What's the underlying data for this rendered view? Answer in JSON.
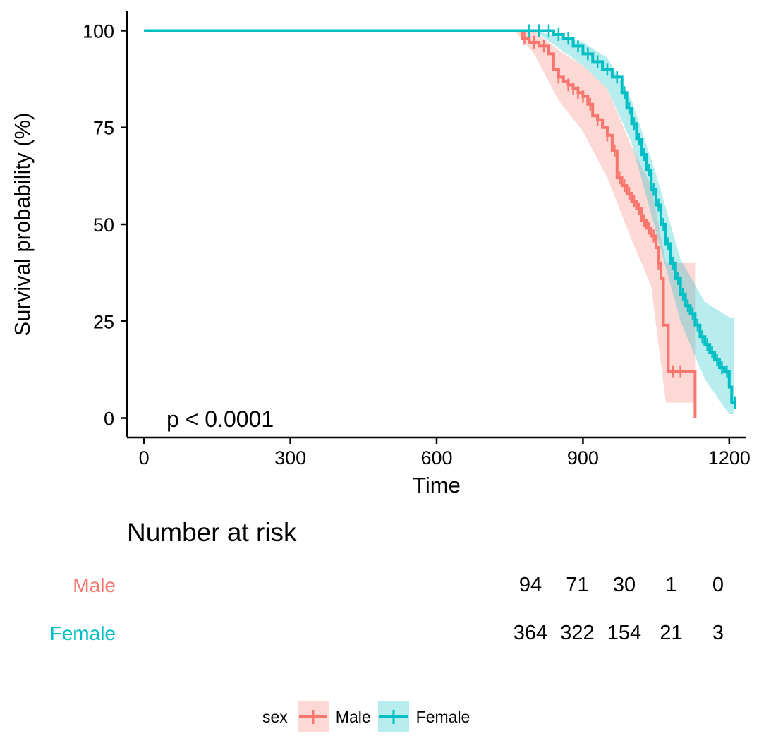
{
  "chart_data": {
    "type": "line",
    "subtype": "kaplan-meier",
    "title": "",
    "xlabel": "Time",
    "ylabel": "Survival probability (%)",
    "xlim": [
      -35,
      1235
    ],
    "ylim": [
      -5,
      105
    ],
    "xticks": [
      0,
      300,
      600,
      900,
      1200
    ],
    "yticks": [
      0,
      25,
      50,
      75,
      100
    ],
    "annotation": "p < 0.0001",
    "grid": false,
    "series": [
      {
        "name": "Male",
        "color": "#F8766D",
        "steps": [
          [
            0,
            100
          ],
          [
            760,
            100
          ],
          [
            775,
            98
          ],
          [
            790,
            97
          ],
          [
            810,
            96
          ],
          [
            830,
            94
          ],
          [
            840,
            90
          ],
          [
            850,
            88
          ],
          [
            860,
            87
          ],
          [
            870,
            86
          ],
          [
            880,
            85
          ],
          [
            890,
            84
          ],
          [
            900,
            83
          ],
          [
            910,
            81
          ],
          [
            920,
            78
          ],
          [
            930,
            77
          ],
          [
            940,
            75
          ],
          [
            950,
            73
          ],
          [
            960,
            69
          ],
          [
            970,
            62
          ],
          [
            980,
            60
          ],
          [
            990,
            58
          ],
          [
            1000,
            56
          ],
          [
            1010,
            54
          ],
          [
            1020,
            51
          ],
          [
            1030,
            49
          ],
          [
            1040,
            47
          ],
          [
            1050,
            44
          ],
          [
            1055,
            40
          ],
          [
            1060,
            36
          ],
          [
            1065,
            24
          ],
          [
            1075,
            12
          ],
          [
            1125,
            12
          ],
          [
            1130,
            0
          ]
        ],
        "ci_upper": [
          [
            760,
            100
          ],
          [
            800,
            100
          ],
          [
            850,
            95
          ],
          [
            900,
            91
          ],
          [
            950,
            85
          ],
          [
            1000,
            70
          ],
          [
            1040,
            60
          ],
          [
            1070,
            40
          ],
          [
            1090,
            40
          ],
          [
            1130,
            40
          ]
        ],
        "ci_lower": [
          [
            760,
            100
          ],
          [
            800,
            94
          ],
          [
            850,
            82
          ],
          [
            900,
            74
          ],
          [
            950,
            62
          ],
          [
            1000,
            46
          ],
          [
            1040,
            34
          ],
          [
            1060,
            14
          ],
          [
            1070,
            4
          ],
          [
            1130,
            4
          ]
        ],
        "censor_times": [
          780,
          800,
          820,
          850,
          870,
          880,
          890,
          900,
          915,
          930,
          950,
          965,
          975,
          985,
          995,
          1005,
          1015,
          1025,
          1035,
          1045,
          1055,
          1085,
          1100
        ]
      },
      {
        "name": "Female",
        "color": "#00BFC4",
        "steps": [
          [
            0,
            100
          ],
          [
            800,
            100
          ],
          [
            840,
            99
          ],
          [
            860,
            98
          ],
          [
            880,
            96
          ],
          [
            900,
            94
          ],
          [
            920,
            92
          ],
          [
            940,
            90
          ],
          [
            960,
            88
          ],
          [
            980,
            84
          ],
          [
            990,
            80
          ],
          [
            1000,
            76
          ],
          [
            1010,
            72
          ],
          [
            1020,
            68
          ],
          [
            1030,
            64
          ],
          [
            1040,
            59
          ],
          [
            1050,
            55
          ],
          [
            1060,
            50
          ],
          [
            1070,
            45
          ],
          [
            1080,
            40
          ],
          [
            1090,
            36
          ],
          [
            1100,
            32
          ],
          [
            1110,
            29
          ],
          [
            1120,
            27
          ],
          [
            1130,
            24
          ],
          [
            1140,
            21
          ],
          [
            1150,
            19
          ],
          [
            1160,
            17
          ],
          [
            1170,
            15
          ],
          [
            1180,
            13
          ],
          [
            1190,
            12
          ],
          [
            1200,
            8
          ],
          [
            1205,
            4
          ],
          [
            1210,
            4
          ]
        ],
        "ci_upper": [
          [
            800,
            100
          ],
          [
            900,
            97
          ],
          [
            950,
            93
          ],
          [
            1000,
            82
          ],
          [
            1050,
            63
          ],
          [
            1100,
            41
          ],
          [
            1150,
            30
          ],
          [
            1200,
            26
          ],
          [
            1210,
            26
          ]
        ],
        "ci_lower": [
          [
            800,
            100
          ],
          [
            900,
            91
          ],
          [
            950,
            85
          ],
          [
            1000,
            71
          ],
          [
            1050,
            48
          ],
          [
            1100,
            25
          ],
          [
            1150,
            10
          ],
          [
            1200,
            1
          ],
          [
            1210,
            1
          ]
        ],
        "censor_times": [
          790,
          810,
          830,
          850,
          870,
          890,
          910,
          930,
          950,
          970,
          985,
          995,
          1005,
          1015,
          1025,
          1035,
          1045,
          1055,
          1065,
          1075,
          1085,
          1095,
          1105,
          1115,
          1125,
          1135,
          1145,
          1155,
          1165,
          1175,
          1185,
          1195,
          1212
        ]
      }
    ]
  },
  "risk_table": {
    "title": "Number at risk",
    "groups": [
      {
        "label": "Male",
        "color": "#F8766D",
        "values": [
          "94",
          "71",
          "30",
          "1",
          "0"
        ]
      },
      {
        "label": "Female",
        "color": "#00BFC4",
        "values": [
          "364",
          "322",
          "154",
          "21",
          "3"
        ]
      }
    ],
    "column_times": [
      800,
      900,
      1000,
      1100,
      1200
    ]
  },
  "legend": {
    "title": "sex",
    "items": [
      {
        "label": "Male",
        "color": "#F8766D"
      },
      {
        "label": "Female",
        "color": "#00BFC4"
      }
    ]
  }
}
